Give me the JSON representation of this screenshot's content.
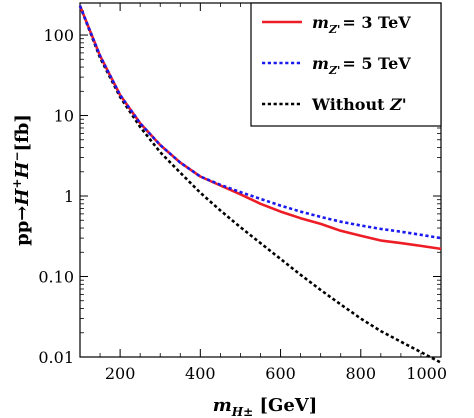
{
  "chart_data": {
    "type": "line",
    "title": "",
    "xlabel": "m_{H±} [GeV]",
    "ylabel": "pp→H+H− [fb]",
    "xlabel_parts": {
      "base": "m",
      "sub": "H±",
      "rest": " [GeV]"
    },
    "ylabel_parts": {
      "p1": "pp→",
      "h1": "H",
      "sup1": "+",
      "h2": "H",
      "sup2": "−",
      "rest": "[fb]"
    },
    "xscale": "linear",
    "yscale": "log",
    "xlim": [
      100,
      1000
    ],
    "ylim": [
      0.01,
      250
    ],
    "x_ticks": [
      200,
      400,
      600,
      800,
      1000
    ],
    "x_tick_labels": [
      "200",
      "400",
      "600",
      "800",
      "1000"
    ],
    "y_ticks": [
      0.01,
      0.1,
      1,
      10,
      100
    ],
    "y_tick_labels": [
      "0.01",
      "0.10",
      "1",
      "10",
      "100"
    ],
    "grid": false,
    "legend_placement": "top-right",
    "series": [
      {
        "name": "m_{Z'} = 3 TeV",
        "legend": {
          "base": "m",
          "sub": "Z'",
          "rest": "= 3 TeV"
        },
        "color": "#ee1c25",
        "style": "solid",
        "x": [
          100,
          150,
          200,
          250,
          300,
          350,
          400,
          450,
          500,
          550,
          600,
          650,
          700,
          750,
          800,
          850,
          900,
          950,
          1000
        ],
        "y": [
          230,
          55,
          18,
          8,
          4.3,
          2.6,
          1.75,
          1.35,
          1.05,
          0.8,
          0.64,
          0.53,
          0.45,
          0.37,
          0.32,
          0.28,
          0.26,
          0.24,
          0.22
        ]
      },
      {
        "name": "m_{Z'} = 5 TeV",
        "legend": {
          "base": "m",
          "sub": "Z'",
          "rest": "= 5 TeV"
        },
        "color": "#1a1aee",
        "style": "dotted",
        "x": [
          100,
          150,
          200,
          250,
          300,
          350,
          400,
          450,
          500,
          550,
          600,
          650,
          700,
          750,
          800,
          850,
          900,
          950,
          1000
        ],
        "y": [
          230,
          55,
          18,
          8,
          4.3,
          2.6,
          1.75,
          1.38,
          1.12,
          0.92,
          0.76,
          0.64,
          0.55,
          0.48,
          0.43,
          0.39,
          0.36,
          0.33,
          0.3
        ]
      },
      {
        "name": "Without Z'",
        "legend": {
          "base": "Without ",
          "italic": "Z'",
          "rest": ""
        },
        "color": "#000000",
        "style": "dotted",
        "x": [
          100,
          150,
          200,
          250,
          300,
          350,
          400,
          450,
          500,
          550,
          600,
          650,
          700,
          750,
          800,
          850,
          900,
          950,
          1000
        ],
        "y": [
          230,
          52,
          17,
          7.2,
          3.5,
          1.95,
          1.1,
          0.66,
          0.41,
          0.26,
          0.165,
          0.105,
          0.068,
          0.045,
          0.03,
          0.021,
          0.0155,
          0.0115,
          0.0085
        ]
      }
    ]
  }
}
